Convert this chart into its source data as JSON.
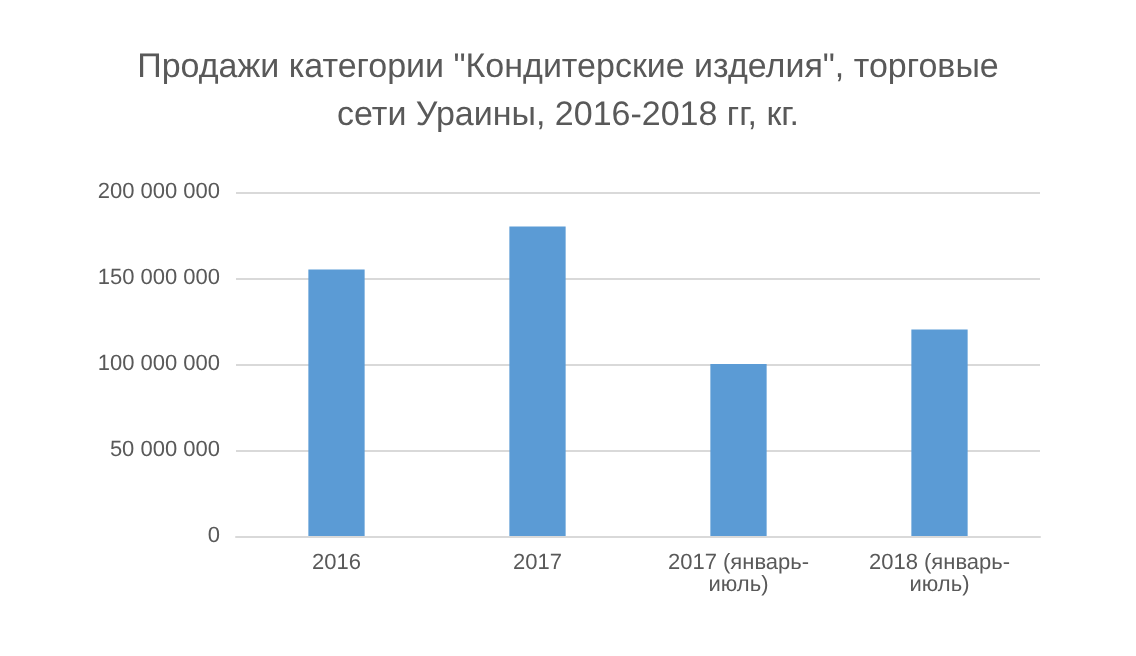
{
  "chart_data": {
    "type": "bar",
    "title": "Продажи категории \"Кондитерские изделия\", торговые\nсети Ураины, 2016-2018 гг, кг.",
    "categories": [
      "2016",
      "2017",
      "2017 (январь-\nиюль)",
      "2018 (январь-\nиюль)"
    ],
    "values": [
      155000000,
      180000000,
      100000000,
      120000000
    ],
    "color": "#5b9bd5",
    "ylim": [
      0,
      200000000
    ],
    "yticks": [
      {
        "value": 0,
        "label": "0"
      },
      {
        "value": 50000000,
        "label": "50 000 000"
      },
      {
        "value": 100000000,
        "label": "100 000 000"
      },
      {
        "value": 150000000,
        "label": "150 000 000"
      },
      {
        "value": 200000000,
        "label": "200 000 000"
      }
    ],
    "grid": true
  }
}
